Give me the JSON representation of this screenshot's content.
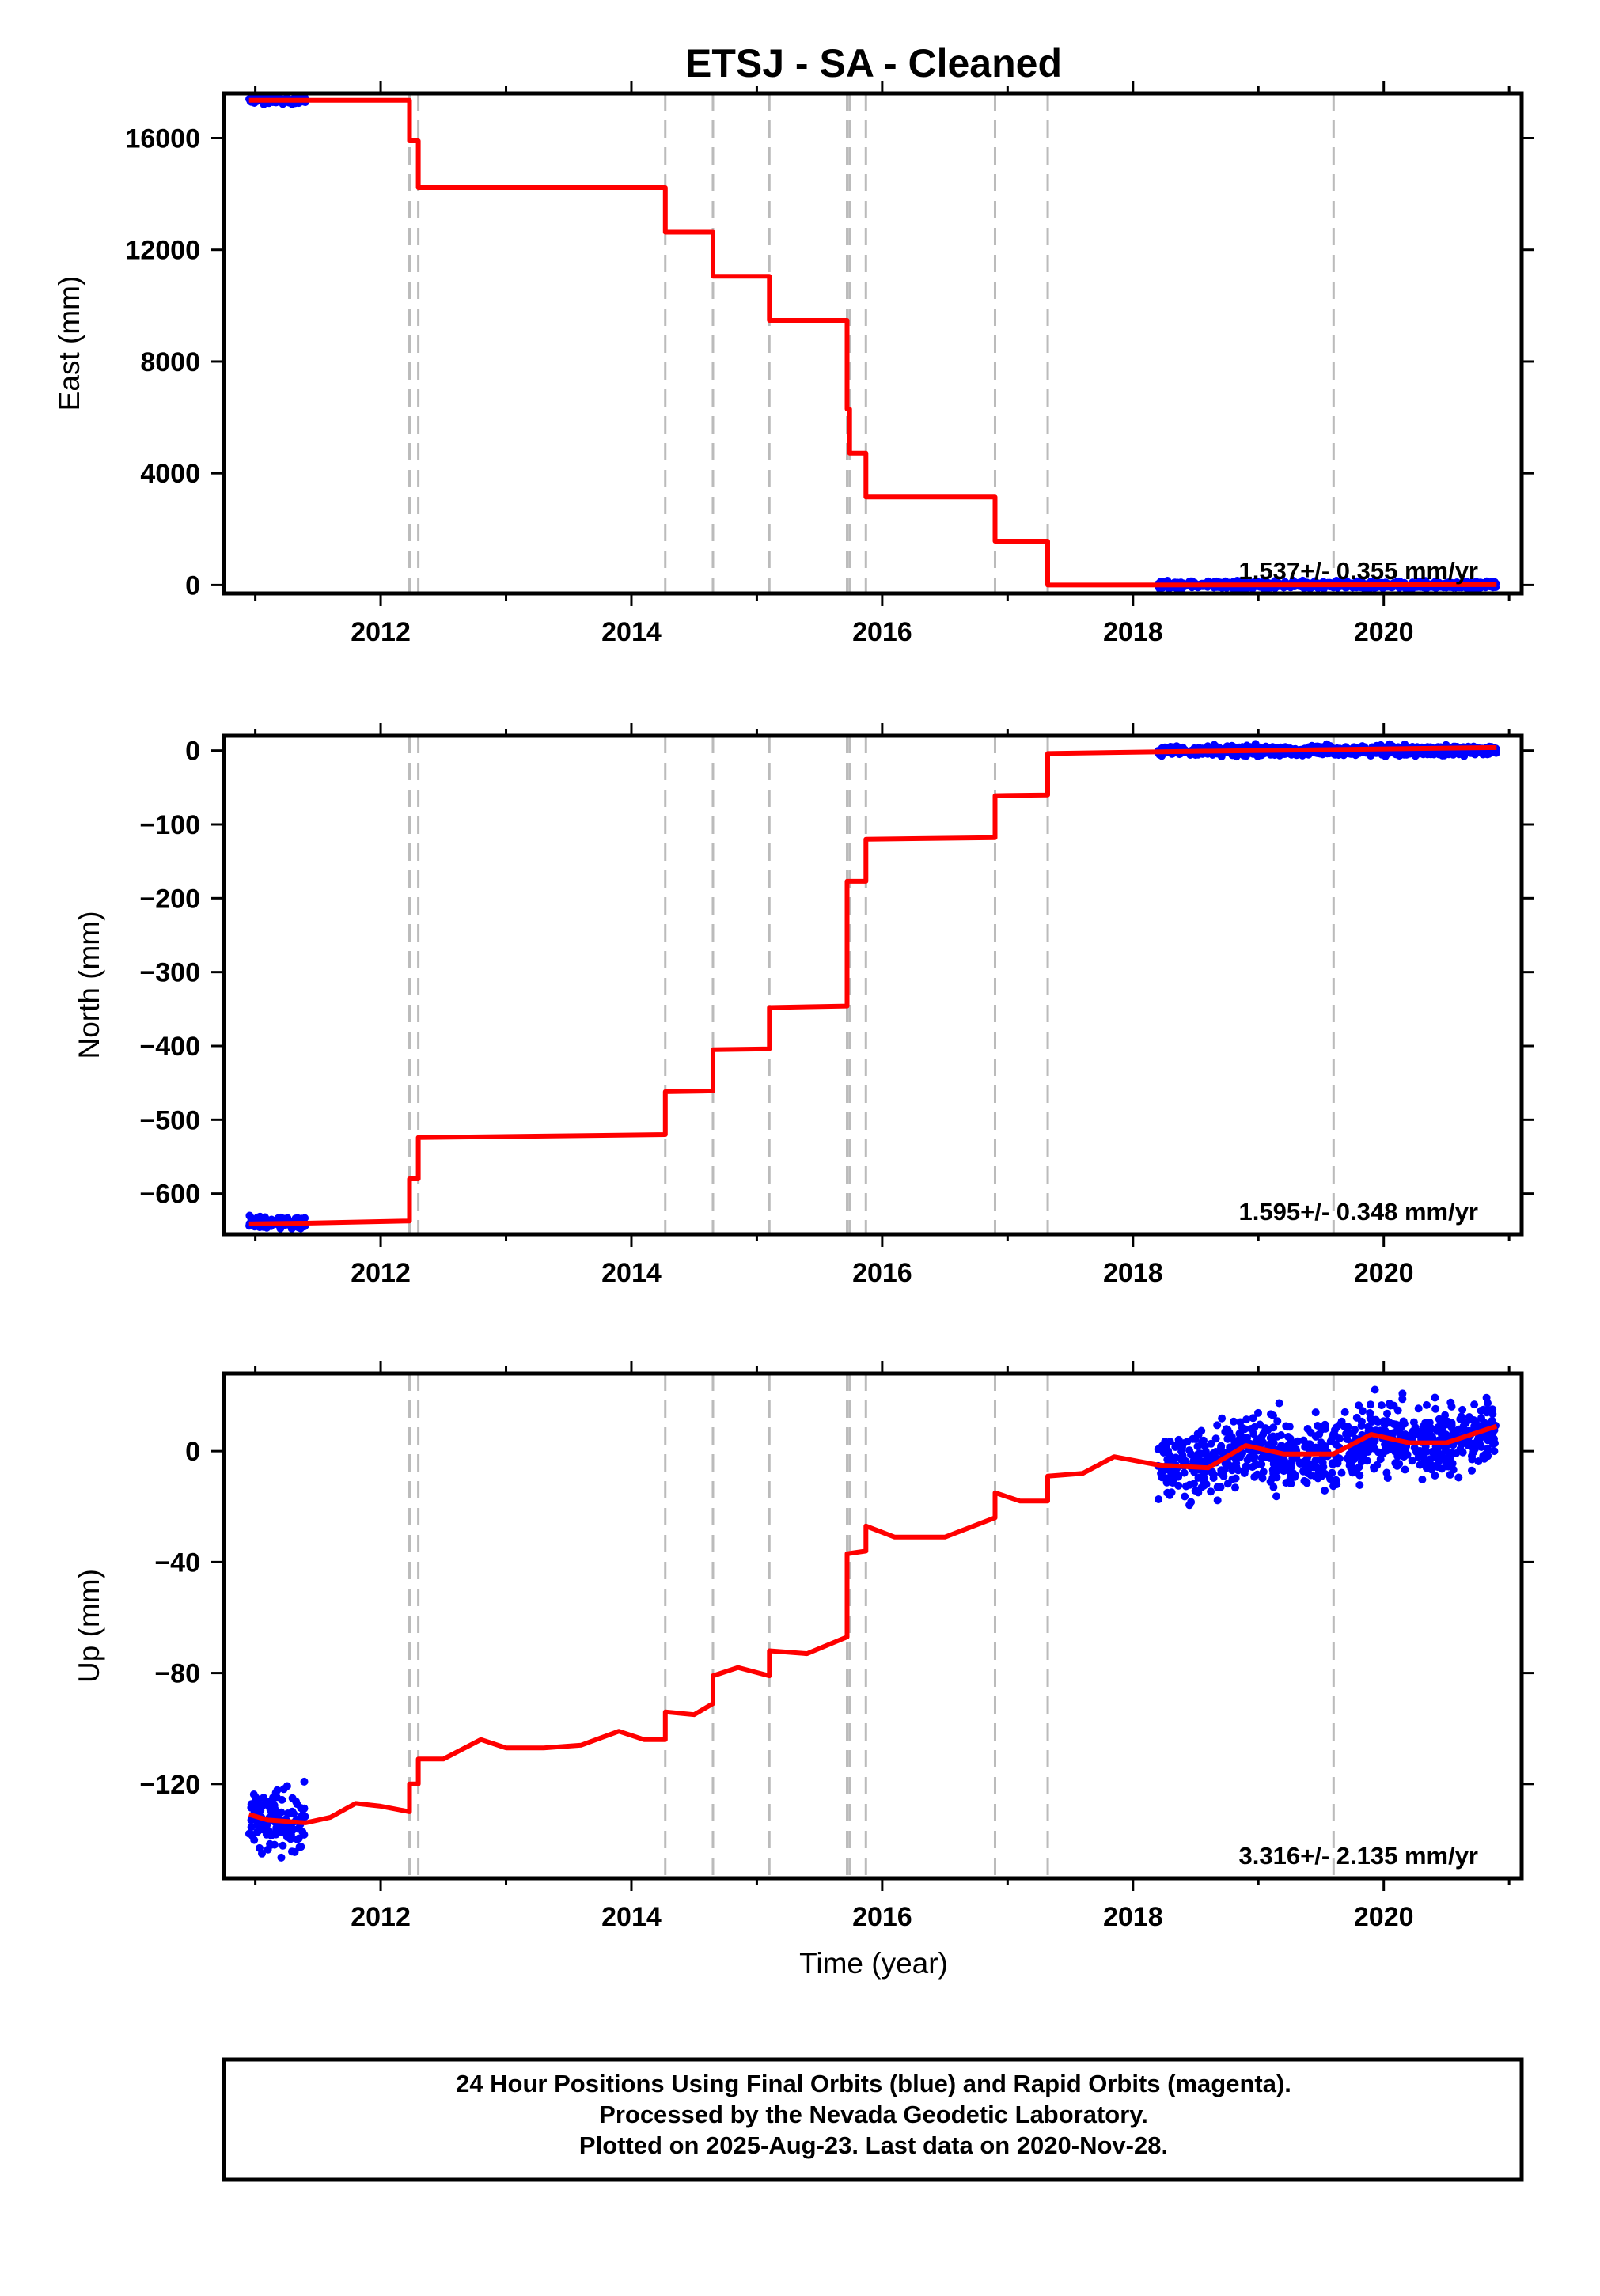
{
  "chart_data": {
    "type": "scatter",
    "title": "ETSJ  - SA - Cleaned",
    "xlabel": "Time (year)",
    "xlim": [
      2010.75,
      2021.1
    ],
    "xticks": [
      2012,
      2014,
      2016,
      2018,
      2020
    ],
    "event_lines": [
      2012.23,
      2012.3,
      2014.27,
      2014.65,
      2015.1,
      2015.72,
      2015.74,
      2015.87,
      2016.9,
      2017.32,
      2019.6
    ],
    "panels": [
      {
        "name": "east",
        "ylabel": "East (mm)",
        "ylim": [
          -300,
          17600
        ],
        "yticks": [
          0,
          4000,
          8000,
          12000,
          16000
        ],
        "rate": "1.537+/- 0.355 mm/yr",
        "data_points": [
          {
            "x_range": [
              2010.95,
              2011.4
            ],
            "y": 17350,
            "spread": 60
          },
          {
            "x_range": [
              2018.2,
              2020.9
            ],
            "y": 5,
            "spread": 60
          }
        ],
        "model": [
          [
            2010.95,
            17350
          ],
          [
            2012.23,
            17350
          ],
          [
            2012.23,
            15900
          ],
          [
            2012.3,
            15900
          ],
          [
            2012.3,
            14230
          ],
          [
            2014.27,
            14230
          ],
          [
            2014.27,
            12630
          ],
          [
            2014.65,
            12630
          ],
          [
            2014.65,
            11050
          ],
          [
            2015.1,
            11050
          ],
          [
            2015.1,
            9470
          ],
          [
            2015.72,
            9470
          ],
          [
            2015.72,
            6300
          ],
          [
            2015.74,
            6300
          ],
          [
            2015.74,
            4720
          ],
          [
            2015.87,
            4720
          ],
          [
            2015.87,
            3150
          ],
          [
            2016.9,
            3150
          ],
          [
            2016.9,
            1570
          ],
          [
            2017.32,
            1570
          ],
          [
            2017.32,
            0
          ],
          [
            2020.9,
            15
          ]
        ]
      },
      {
        "name": "north",
        "ylabel": "North (mm)",
        "ylim": [
          -655,
          20
        ],
        "yticks": [
          0,
          -100,
          -200,
          -300,
          -400,
          -500,
          -600
        ],
        "rate": "1.595+/- 0.348 mm/yr",
        "data_points": [
          {
            "x_range": [
              2010.95,
              2011.4
            ],
            "y": -639,
            "spread": 4
          },
          {
            "x_range": [
              2018.2,
              2020.9
            ],
            "y": 0,
            "spread": 3
          }
        ],
        "model": [
          [
            2010.95,
            -641
          ],
          [
            2011.4,
            -640
          ],
          [
            2012.23,
            -637
          ],
          [
            2012.23,
            -580
          ],
          [
            2012.3,
            -580
          ],
          [
            2012.3,
            -524
          ],
          [
            2013.3,
            -522
          ],
          [
            2014.27,
            -520
          ],
          [
            2014.27,
            -462
          ],
          [
            2014.65,
            -461
          ],
          [
            2014.65,
            -405
          ],
          [
            2015.1,
            -404
          ],
          [
            2015.1,
            -348
          ],
          [
            2015.72,
            -346
          ],
          [
            2015.72,
            -177
          ],
          [
            2015.87,
            -177
          ],
          [
            2015.87,
            -120
          ],
          [
            2016.9,
            -118
          ],
          [
            2016.9,
            -61
          ],
          [
            2017.32,
            -60
          ],
          [
            2017.32,
            -4
          ],
          [
            2018.5,
            -1
          ],
          [
            2020.9,
            4
          ]
        ]
      },
      {
        "name": "up",
        "ylabel": "Up (mm)",
        "ylim": [
          -154,
          28
        ],
        "yticks": [
          0,
          -40,
          -80,
          -120
        ],
        "rate": "3.316+/- 2.135 mm/yr",
        "data_points": [
          {
            "x_range": [
              2010.95,
              2011.4
            ],
            "y": -133,
            "spread": 6
          },
          {
            "x_range": [
              2018.2,
              2020.9
            ],
            "y": 0,
            "spread": 6
          }
        ],
        "model": [
          [
            2010.95,
            -131
          ],
          [
            2011.1,
            -133
          ],
          [
            2011.4,
            -134
          ],
          [
            2011.6,
            -132
          ],
          [
            2011.8,
            -127
          ],
          [
            2012.0,
            -128
          ],
          [
            2012.23,
            -130
          ],
          [
            2012.23,
            -120
          ],
          [
            2012.3,
            -120
          ],
          [
            2012.3,
            -111
          ],
          [
            2012.5,
            -111
          ],
          [
            2012.8,
            -104
          ],
          [
            2013.0,
            -107
          ],
          [
            2013.3,
            -107
          ],
          [
            2013.6,
            -106
          ],
          [
            2013.9,
            -101
          ],
          [
            2014.1,
            -104
          ],
          [
            2014.27,
            -104
          ],
          [
            2014.27,
            -94
          ],
          [
            2014.5,
            -95
          ],
          [
            2014.65,
            -91
          ],
          [
            2014.65,
            -81
          ],
          [
            2014.85,
            -78
          ],
          [
            2015.1,
            -81
          ],
          [
            2015.1,
            -72
          ],
          [
            2015.4,
            -73
          ],
          [
            2015.72,
            -67
          ],
          [
            2015.72,
            -37
          ],
          [
            2015.87,
            -36
          ],
          [
            2015.87,
            -27
          ],
          [
            2016.1,
            -31
          ],
          [
            2016.5,
            -31
          ],
          [
            2016.9,
            -24
          ],
          [
            2016.9,
            -15
          ],
          [
            2017.1,
            -18
          ],
          [
            2017.32,
            -18
          ],
          [
            2017.32,
            -9
          ],
          [
            2017.6,
            -8
          ],
          [
            2017.85,
            -2
          ],
          [
            2018.2,
            -5
          ],
          [
            2018.6,
            -6
          ],
          [
            2018.9,
            2
          ],
          [
            2019.2,
            -1
          ],
          [
            2019.6,
            -1
          ],
          [
            2019.9,
            6
          ],
          [
            2020.2,
            3
          ],
          [
            2020.5,
            3
          ],
          [
            2020.9,
            9
          ]
        ]
      }
    ]
  },
  "footer": {
    "line1": "24 Hour Positions Using Final Orbits (blue) and Rapid Orbits (magenta).",
    "line2": "Processed by the Nevada Geodetic Laboratory.",
    "line3": "Plotted on 2025-Aug-23. Last data on 2020-Nov-28."
  },
  "colors": {
    "data_points": "#0000ff",
    "model_line": "#ff0000",
    "event_lines": "#bbbbbb",
    "frame": "#000000"
  }
}
